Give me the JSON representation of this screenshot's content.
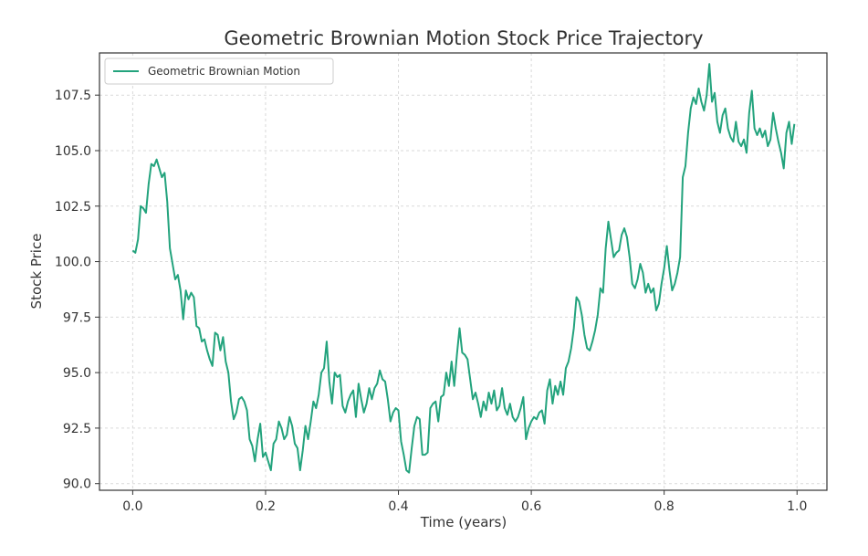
{
  "chart_data": {
    "type": "line",
    "title": "Geometric Brownian Motion Stock Price Trajectory",
    "xlabel": "Time (years)",
    "ylabel": "Stock Price",
    "xlim": [
      -0.05,
      1.045
    ],
    "ylim": [
      89.7,
      109.4
    ],
    "xticks": [
      0.0,
      0.2,
      0.4,
      0.6,
      0.8,
      1.0
    ],
    "xtick_labels": [
      "0.0",
      "0.2",
      "0.4",
      "0.6",
      "0.8",
      "1.0"
    ],
    "yticks": [
      90.0,
      92.5,
      95.0,
      97.5,
      100.0,
      102.5,
      105.0,
      107.5
    ],
    "ytick_labels": [
      "90.0",
      "92.5",
      "95.0",
      "97.5",
      "100.0",
      "102.5",
      "105.0",
      "107.5"
    ],
    "grid": true,
    "legend_position": "top-left",
    "series": [
      {
        "name": "Geometric Brownian Motion",
        "color": "#23a37d",
        "x": [
          0.0,
          0.004,
          0.008,
          0.012,
          0.016,
          0.02,
          0.024,
          0.028,
          0.032,
          0.036,
          0.04,
          0.044,
          0.048,
          0.052,
          0.056,
          0.06,
          0.064,
          0.068,
          0.072,
          0.076,
          0.08,
          0.084,
          0.088,
          0.092,
          0.096,
          0.1,
          0.104,
          0.108,
          0.112,
          0.116,
          0.12,
          0.124,
          0.128,
          0.132,
          0.136,
          0.14,
          0.144,
          0.148,
          0.152,
          0.156,
          0.16,
          0.164,
          0.168,
          0.172,
          0.176,
          0.18,
          0.184,
          0.188,
          0.192,
          0.196,
          0.2,
          0.204,
          0.208,
          0.212,
          0.216,
          0.22,
          0.224,
          0.228,
          0.232,
          0.236,
          0.24,
          0.244,
          0.248,
          0.252,
          0.256,
          0.26,
          0.264,
          0.268,
          0.272,
          0.276,
          0.28,
          0.284,
          0.288,
          0.292,
          0.296,
          0.3,
          0.304,
          0.308,
          0.312,
          0.316,
          0.32,
          0.324,
          0.328,
          0.332,
          0.336,
          0.34,
          0.344,
          0.348,
          0.352,
          0.356,
          0.36,
          0.364,
          0.368,
          0.372,
          0.376,
          0.38,
          0.384,
          0.388,
          0.392,
          0.396,
          0.4,
          0.404,
          0.408,
          0.412,
          0.416,
          0.42,
          0.424,
          0.428,
          0.432,
          0.436,
          0.44,
          0.444,
          0.448,
          0.452,
          0.456,
          0.46,
          0.464,
          0.468,
          0.472,
          0.476,
          0.48,
          0.484,
          0.488,
          0.492,
          0.496,
          0.5,
          0.504,
          0.508,
          0.512,
          0.516,
          0.52,
          0.524,
          0.528,
          0.532,
          0.536,
          0.54,
          0.544,
          0.548,
          0.552,
          0.556,
          0.56,
          0.564,
          0.568,
          0.572,
          0.576,
          0.58,
          0.584,
          0.588,
          0.592,
          0.596,
          0.6,
          0.604,
          0.608,
          0.612,
          0.616,
          0.62,
          0.624,
          0.628,
          0.632,
          0.636,
          0.64,
          0.644,
          0.648,
          0.652,
          0.656,
          0.66,
          0.664,
          0.668,
          0.672,
          0.676,
          0.68,
          0.684,
          0.688,
          0.692,
          0.696,
          0.7,
          0.704,
          0.708,
          0.712,
          0.716,
          0.72,
          0.724,
          0.728,
          0.732,
          0.736,
          0.74,
          0.744,
          0.748,
          0.752,
          0.756,
          0.76,
          0.764,
          0.768,
          0.772,
          0.776,
          0.78,
          0.784,
          0.788,
          0.792,
          0.796,
          0.8,
          0.804,
          0.808,
          0.812,
          0.816,
          0.82,
          0.824,
          0.828,
          0.832,
          0.836,
          0.84,
          0.844,
          0.848,
          0.852,
          0.856,
          0.86,
          0.864,
          0.868,
          0.872,
          0.876,
          0.88,
          0.884,
          0.888,
          0.892,
          0.896,
          0.9,
          0.904,
          0.908,
          0.912,
          0.916,
          0.92,
          0.924,
          0.928,
          0.932,
          0.936,
          0.94,
          0.944,
          0.948,
          0.952,
          0.956,
          0.96,
          0.964,
          0.968,
          0.972,
          0.976,
          0.98,
          0.984,
          0.988,
          0.992,
          0.996
        ],
        "y": [
          100.5,
          100.4,
          101.0,
          102.5,
          102.4,
          102.2,
          103.5,
          104.4,
          104.3,
          104.6,
          104.2,
          103.8,
          104.0,
          102.7,
          100.6,
          99.9,
          99.2,
          99.4,
          98.7,
          97.4,
          98.7,
          98.3,
          98.6,
          98.4,
          97.1,
          97.0,
          96.4,
          96.5,
          96.0,
          95.6,
          95.3,
          96.8,
          96.7,
          96.0,
          96.6,
          95.5,
          95.0,
          93.7,
          92.9,
          93.2,
          93.8,
          93.9,
          93.7,
          93.3,
          92.0,
          91.7,
          91.0,
          92.0,
          92.7,
          91.2,
          91.4,
          91.0,
          90.6,
          91.8,
          92.0,
          92.8,
          92.5,
          92.0,
          92.2,
          93.0,
          92.6,
          91.8,
          91.6,
          90.6,
          91.5,
          92.6,
          92.0,
          92.8,
          93.7,
          93.4,
          94.0,
          95.0,
          95.2,
          96.4,
          94.6,
          93.6,
          95.0,
          94.8,
          94.9,
          93.5,
          93.2,
          93.7,
          94.0,
          94.2,
          93.0,
          94.5,
          93.8,
          93.2,
          93.6,
          94.3,
          93.8,
          94.3,
          94.5,
          95.1,
          94.7,
          94.6,
          93.8,
          92.8,
          93.2,
          93.4,
          93.3,
          91.9,
          91.3,
          90.6,
          90.5,
          91.6,
          92.6,
          93.0,
          92.9,
          91.3,
          91.3,
          91.4,
          93.4,
          93.6,
          93.7,
          92.8,
          93.9,
          94.0,
          95.0,
          94.4,
          95.5,
          94.4,
          95.8,
          97.0,
          95.9,
          95.8,
          95.6,
          94.7,
          93.8,
          94.1,
          93.6,
          93.0,
          93.7,
          93.3,
          94.1,
          93.6,
          94.2,
          93.3,
          93.5,
          94.3,
          93.4,
          93.1,
          93.6,
          93.0,
          92.8,
          93.0,
          93.4,
          93.9,
          92.0,
          92.5,
          92.8,
          93.0,
          92.9,
          93.2,
          93.3,
          92.7,
          94.2,
          94.7,
          93.6,
          94.4,
          94.0,
          94.6,
          94.0,
          95.2,
          95.5,
          96.1,
          97.0,
          98.4,
          98.2,
          97.6,
          96.7,
          96.1,
          96.0,
          96.4,
          96.9,
          97.6,
          98.8,
          98.6,
          100.6,
          101.8,
          101.0,
          100.2,
          100.4,
          100.5,
          101.2,
          101.5,
          101.1,
          100.2,
          99.0,
          98.8,
          99.2,
          99.9,
          99.5,
          98.6,
          99.0,
          98.6,
          98.8,
          97.8,
          98.1,
          99.0,
          99.7,
          100.7,
          99.6,
          98.7,
          99.0,
          99.5,
          100.2,
          103.8,
          104.3,
          105.8,
          106.9,
          107.4,
          107.1,
          107.8,
          107.2,
          106.8,
          107.5,
          108.9,
          107.2,
          107.6,
          106.3,
          105.8,
          106.6,
          106.9,
          106.0,
          105.6,
          105.4,
          106.3,
          105.4,
          105.2,
          105.5,
          104.9,
          106.7,
          107.7,
          106.0,
          105.7,
          106.0,
          105.6,
          105.9,
          105.2,
          105.5,
          106.7,
          106.0,
          105.4,
          104.9,
          104.2,
          105.8,
          106.3,
          105.3,
          106.2
        ]
      }
    ]
  }
}
